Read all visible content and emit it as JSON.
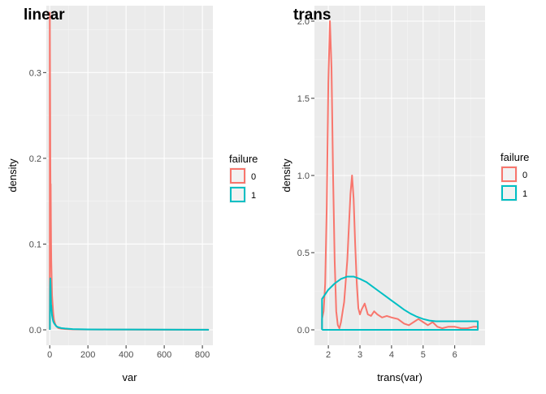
{
  "chart_data": [
    {
      "type": "line",
      "title": "linear",
      "xlabel": "var",
      "ylabel": "density",
      "xlim": [
        -18,
        855
      ],
      "ylim": [
        -0.018,
        0.378
      ],
      "xticks": [
        0,
        200,
        400,
        600,
        800
      ],
      "yticks": [
        0.0,
        0.1,
        0.2,
        0.3
      ],
      "ytick_labels": [
        "0.0",
        "0.1",
        "0.2",
        "0.3"
      ],
      "legend": {
        "title": "failure",
        "entries": [
          "0",
          "1"
        ],
        "position": "right"
      },
      "grid": true,
      "series": [
        {
          "name": "0",
          "color": "#F8766D",
          "points": [
            [
              0.1,
              0
            ],
            [
              0.1,
              0.37
            ],
            [
              0.6,
              0.36
            ],
            [
              1,
              0.33
            ],
            [
              2,
              0.27
            ],
            [
              3,
              0.2
            ],
            [
              4,
              0.16
            ],
            [
              5,
              0.17
            ],
            [
              6,
              0.13
            ],
            [
              7,
              0.1
            ],
            [
              8,
              0.08
            ],
            [
              10,
              0.06
            ],
            [
              12,
              0.04
            ],
            [
              15,
              0.03
            ],
            [
              18,
              0.02
            ],
            [
              22,
              0.012
            ],
            [
              28,
              0.007
            ],
            [
              35,
              0.004
            ],
            [
              45,
              0.002
            ],
            [
              60,
              0.0013
            ],
            [
              80,
              0.001
            ],
            [
              120,
              0.0006
            ],
            [
              200,
              0.0004
            ],
            [
              300,
              0.0003
            ],
            [
              420,
              0.0002
            ],
            [
              600,
              0.0001
            ],
            [
              748,
              0.0001
            ],
            [
              830,
              0.0001
            ],
            [
              834,
              0
            ]
          ]
        },
        {
          "name": "1",
          "color": "#00BFC4",
          "points": [
            [
              1,
              0
            ],
            [
              1,
              0.02
            ],
            [
              2,
              0.05
            ],
            [
              3,
              0.06
            ],
            [
              4,
              0.055
            ],
            [
              5,
              0.045
            ],
            [
              6,
              0.035
            ],
            [
              7,
              0.03
            ],
            [
              8,
              0.028
            ],
            [
              10,
              0.022
            ],
            [
              12,
              0.017
            ],
            [
              15,
              0.013
            ],
            [
              18,
              0.01
            ],
            [
              22,
              0.008
            ],
            [
              28,
              0.006
            ],
            [
              35,
              0.004
            ],
            [
              45,
              0.003
            ],
            [
              60,
              0.002
            ],
            [
              80,
              0.0015
            ],
            [
              120,
              0.0008
            ],
            [
              200,
              0.0005
            ],
            [
              300,
              0.0004
            ],
            [
              420,
              0.0003
            ],
            [
              600,
              0.0002
            ],
            [
              748,
              0.0001
            ],
            [
              830,
              0.0001
            ],
            [
              834,
              0
            ]
          ]
        }
      ]
    },
    {
      "type": "line",
      "title": "trans",
      "xlabel": "trans(var)",
      "ylabel": "density",
      "xlim": [
        1.56,
        6.96
      ],
      "ylim": [
        -0.1,
        2.1
      ],
      "xticks": [
        2,
        3,
        4,
        5,
        6
      ],
      "yticks": [
        0.0,
        0.5,
        1.0,
        1.5,
        2.0
      ],
      "ytick_labels": [
        "0.0",
        "0.5",
        "1.0",
        "1.5",
        "2.0"
      ],
      "legend": {
        "title": "failure",
        "entries": [
          "0",
          "1"
        ],
        "position": "right"
      },
      "grid": true,
      "series": [
        {
          "name": "0",
          "color": "#F8766D",
          "points": [
            [
              1.8,
              0
            ],
            [
              1.8,
              0.07
            ],
            [
              1.85,
              0.12
            ],
            [
              1.9,
              0.3
            ],
            [
              1.95,
              0.8
            ],
            [
              2.0,
              1.6
            ],
            [
              2.05,
              2.0
            ],
            [
              2.1,
              1.7
            ],
            [
              2.15,
              1.0
            ],
            [
              2.2,
              0.45
            ],
            [
              2.25,
              0.12
            ],
            [
              2.3,
              0.03
            ],
            [
              2.35,
              0.01
            ],
            [
              2.4,
              0.05
            ],
            [
              2.5,
              0.18
            ],
            [
              2.6,
              0.45
            ],
            [
              2.7,
              0.88
            ],
            [
              2.75,
              1.0
            ],
            [
              2.8,
              0.85
            ],
            [
              2.85,
              0.55
            ],
            [
              2.9,
              0.3
            ],
            [
              2.95,
              0.14
            ],
            [
              3.0,
              0.1
            ],
            [
              3.05,
              0.13
            ],
            [
              3.15,
              0.17
            ],
            [
              3.25,
              0.1
            ],
            [
              3.35,
              0.09
            ],
            [
              3.45,
              0.12
            ],
            [
              3.55,
              0.1
            ],
            [
              3.7,
              0.08
            ],
            [
              3.85,
              0.09
            ],
            [
              4.0,
              0.08
            ],
            [
              4.2,
              0.07
            ],
            [
              4.4,
              0.04
            ],
            [
              4.55,
              0.03
            ],
            [
              4.7,
              0.05
            ],
            [
              4.85,
              0.07
            ],
            [
              5.0,
              0.05
            ],
            [
              5.15,
              0.03
            ],
            [
              5.3,
              0.05
            ],
            [
              5.45,
              0.02
            ],
            [
              5.6,
              0.01
            ],
            [
              5.8,
              0.02
            ],
            [
              6.0,
              0.02
            ],
            [
              6.2,
              0.01
            ],
            [
              6.4,
              0.01
            ],
            [
              6.6,
              0.02
            ],
            [
              6.73,
              0.02
            ],
            [
              6.73,
              0
            ]
          ]
        },
        {
          "name": "1",
          "color": "#00BFC4",
          "points": [
            [
              1.8,
              0
            ],
            [
              1.8,
              0.2
            ],
            [
              2.0,
              0.26
            ],
            [
              2.2,
              0.3
            ],
            [
              2.4,
              0.33
            ],
            [
              2.6,
              0.345
            ],
            [
              2.8,
              0.345
            ],
            [
              3.0,
              0.33
            ],
            [
              3.2,
              0.31
            ],
            [
              3.4,
              0.28
            ],
            [
              3.6,
              0.25
            ],
            [
              3.8,
              0.22
            ],
            [
              4.0,
              0.19
            ],
            [
              4.2,
              0.16
            ],
            [
              4.4,
              0.13
            ],
            [
              4.6,
              0.105
            ],
            [
              4.8,
              0.085
            ],
            [
              5.0,
              0.07
            ],
            [
              5.2,
              0.06
            ],
            [
              5.4,
              0.055
            ],
            [
              5.6,
              0.055
            ],
            [
              5.8,
              0.055
            ],
            [
              6.0,
              0.055
            ],
            [
              6.2,
              0.055
            ],
            [
              6.4,
              0.055
            ],
            [
              6.6,
              0.055
            ],
            [
              6.73,
              0.055
            ],
            [
              6.73,
              0
            ],
            [
              1.8,
              0
            ]
          ]
        }
      ]
    }
  ]
}
